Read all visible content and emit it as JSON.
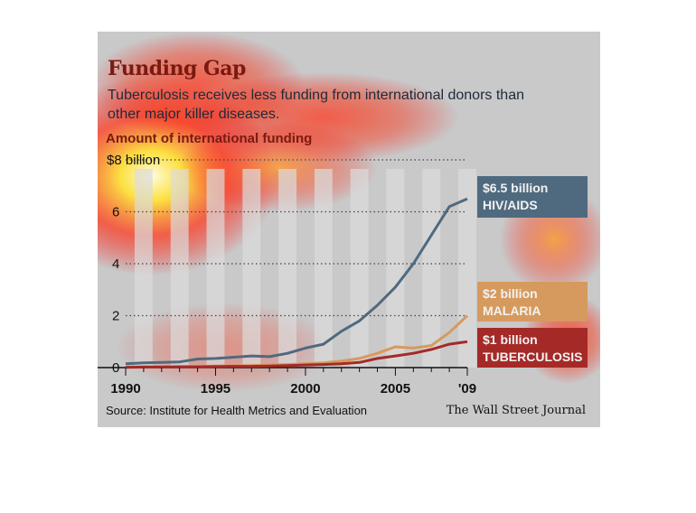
{
  "header": {
    "title": "Funding Gap",
    "subtitle": "Tuberculosis receives less funding from international donors than other major killer diseases.",
    "amount_label": "Amount of international funding"
  },
  "footer": {
    "source": "Source: Institute for Health Metrics and Evaluation",
    "credit": "The Wall Street Journal"
  },
  "colors": {
    "hiv": "#4f6a7f",
    "malaria": "#d79a5e",
    "tb": "#a52a27"
  },
  "chart_data": {
    "type": "line",
    "title": "Funding Gap",
    "ylabel": "Amount of international funding",
    "xlim": [
      1990,
      2009
    ],
    "ylim": [
      0,
      8
    ],
    "y_ticks": [
      "0",
      "2",
      "4",
      "6",
      "$8 billion"
    ],
    "y_tick_values": [
      0,
      2,
      4,
      6,
      8
    ],
    "x_ticks": [
      "1990",
      "1995",
      "2000",
      "2005",
      "'09"
    ],
    "x_tick_values": [
      1990,
      1995,
      2000,
      2005,
      2009
    ],
    "grid": true,
    "x": [
      1990,
      1991,
      1992,
      1993,
      1994,
      1995,
      1996,
      1997,
      1998,
      1999,
      2000,
      2001,
      2002,
      2003,
      2004,
      2005,
      2006,
      2007,
      2008,
      2009
    ],
    "series": [
      {
        "name": "HIV/AIDS",
        "value_label": "$6.5 billion",
        "values": [
          0.15,
          0.18,
          0.2,
          0.22,
          0.33,
          0.35,
          0.4,
          0.45,
          0.42,
          0.55,
          0.75,
          0.9,
          1.4,
          1.8,
          2.4,
          3.1,
          4.0,
          5.1,
          6.2,
          6.5
        ]
      },
      {
        "name": "MALARIA",
        "value_label": "$2 billion",
        "values": [
          0.02,
          0.03,
          0.03,
          0.04,
          0.05,
          0.06,
          0.07,
          0.08,
          0.1,
          0.12,
          0.15,
          0.18,
          0.25,
          0.35,
          0.55,
          0.8,
          0.75,
          0.85,
          1.35,
          2.0
        ]
      },
      {
        "name": "TUBERCULOSIS",
        "value_label": "$1 billion",
        "values": [
          0.01,
          0.02,
          0.02,
          0.03,
          0.03,
          0.04,
          0.05,
          0.05,
          0.06,
          0.08,
          0.1,
          0.12,
          0.15,
          0.2,
          0.35,
          0.45,
          0.55,
          0.7,
          0.9,
          1.0
        ]
      }
    ]
  }
}
